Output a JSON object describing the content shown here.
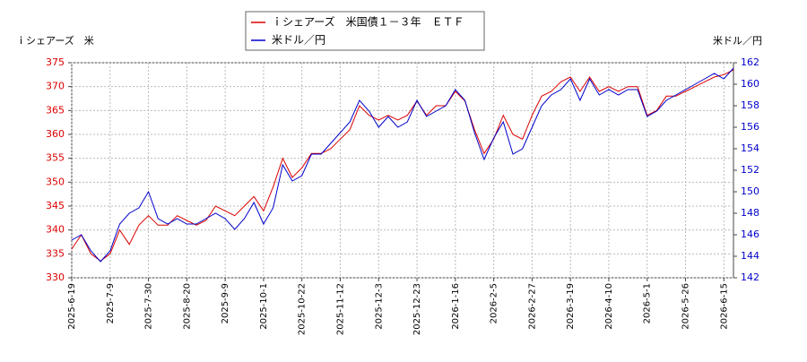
{
  "chart_data": {
    "type": "line",
    "y_label": "ｉシェアーズ　米",
    "y2_label": "米ドル／円",
    "categories": [
      "2025-6-19",
      null,
      null,
      null,
      "2025-7-9",
      null,
      null,
      null,
      "2025-7-30",
      null,
      null,
      null,
      "2025-8-20",
      null,
      null,
      null,
      "2025-9-9",
      null,
      null,
      null,
      "2025-10-1",
      null,
      null,
      null,
      "2025-10-22",
      null,
      null,
      null,
      "2025-11-12",
      null,
      null,
      null,
      "2025-12-3",
      null,
      null,
      null,
      "2025-12-23",
      null,
      null,
      null,
      "2026-1-16",
      null,
      null,
      null,
      "2026-2-5",
      null,
      null,
      null,
      "2026-2-27",
      null,
      null,
      null,
      "2026-3-19",
      null,
      null,
      null,
      "2026-4-10",
      null,
      null,
      null,
      "2026-5-1",
      null,
      null,
      null,
      "2026-5-26",
      null,
      null,
      null,
      "2026-6-15",
      null
    ],
    "series": [
      {
        "name": "ｉシェアーズ　米国債１－３年　ＥＴＦ",
        "color": "#dd0000",
        "values": [
          336,
          339,
          335,
          333.5,
          335,
          340,
          337,
          341,
          343,
          341,
          341,
          343,
          342,
          341,
          342,
          345,
          344,
          343,
          345,
          347,
          344,
          349,
          355,
          351,
          353,
          356,
          356,
          357,
          359,
          361,
          366,
          364,
          363,
          364,
          363,
          364,
          367,
          364,
          366,
          366,
          369,
          367,
          361,
          356,
          359,
          364,
          360,
          359,
          364,
          368,
          369,
          371,
          372,
          369,
          372,
          369,
          370,
          369,
          370,
          370,
          364,
          365,
          368,
          368,
          369,
          370,
          371,
          372,
          372.5,
          373.5
        ]
      },
      {
        "name": "米ドル／円",
        "color": "#0000cc",
        "axis": "y2",
        "values": [
          145.5,
          146,
          144.5,
          143.5,
          144.5,
          147,
          148,
          148.5,
          150,
          147.5,
          147,
          147.5,
          147,
          147,
          147.5,
          148,
          147.5,
          146.5,
          147.5,
          149,
          147,
          148.5,
          152.5,
          151,
          151.5,
          153.5,
          153.5,
          154.5,
          155.5,
          156.5,
          158.5,
          157.5,
          156,
          157,
          156,
          156.5,
          158.5,
          157,
          157.5,
          158,
          159.5,
          158.5,
          155.5,
          153,
          155,
          156.5,
          153.5,
          154,
          156,
          158,
          159,
          159.5,
          160.5,
          158.5,
          160.5,
          159,
          159.5,
          159,
          159.5,
          159.5,
          157,
          157.5,
          158.5,
          159,
          159.5,
          160,
          160.5,
          161,
          160.5,
          161.5
        ]
      }
    ],
    "ylim": [
      330,
      375
    ],
    "yticks": [
      330,
      335,
      340,
      345,
      350,
      355,
      360,
      365,
      370,
      375
    ],
    "y2lim": [
      142,
      162
    ],
    "y2ticks": [
      142,
      144,
      146,
      148,
      150,
      152,
      154,
      156,
      158,
      160,
      162
    ],
    "grid": true
  }
}
